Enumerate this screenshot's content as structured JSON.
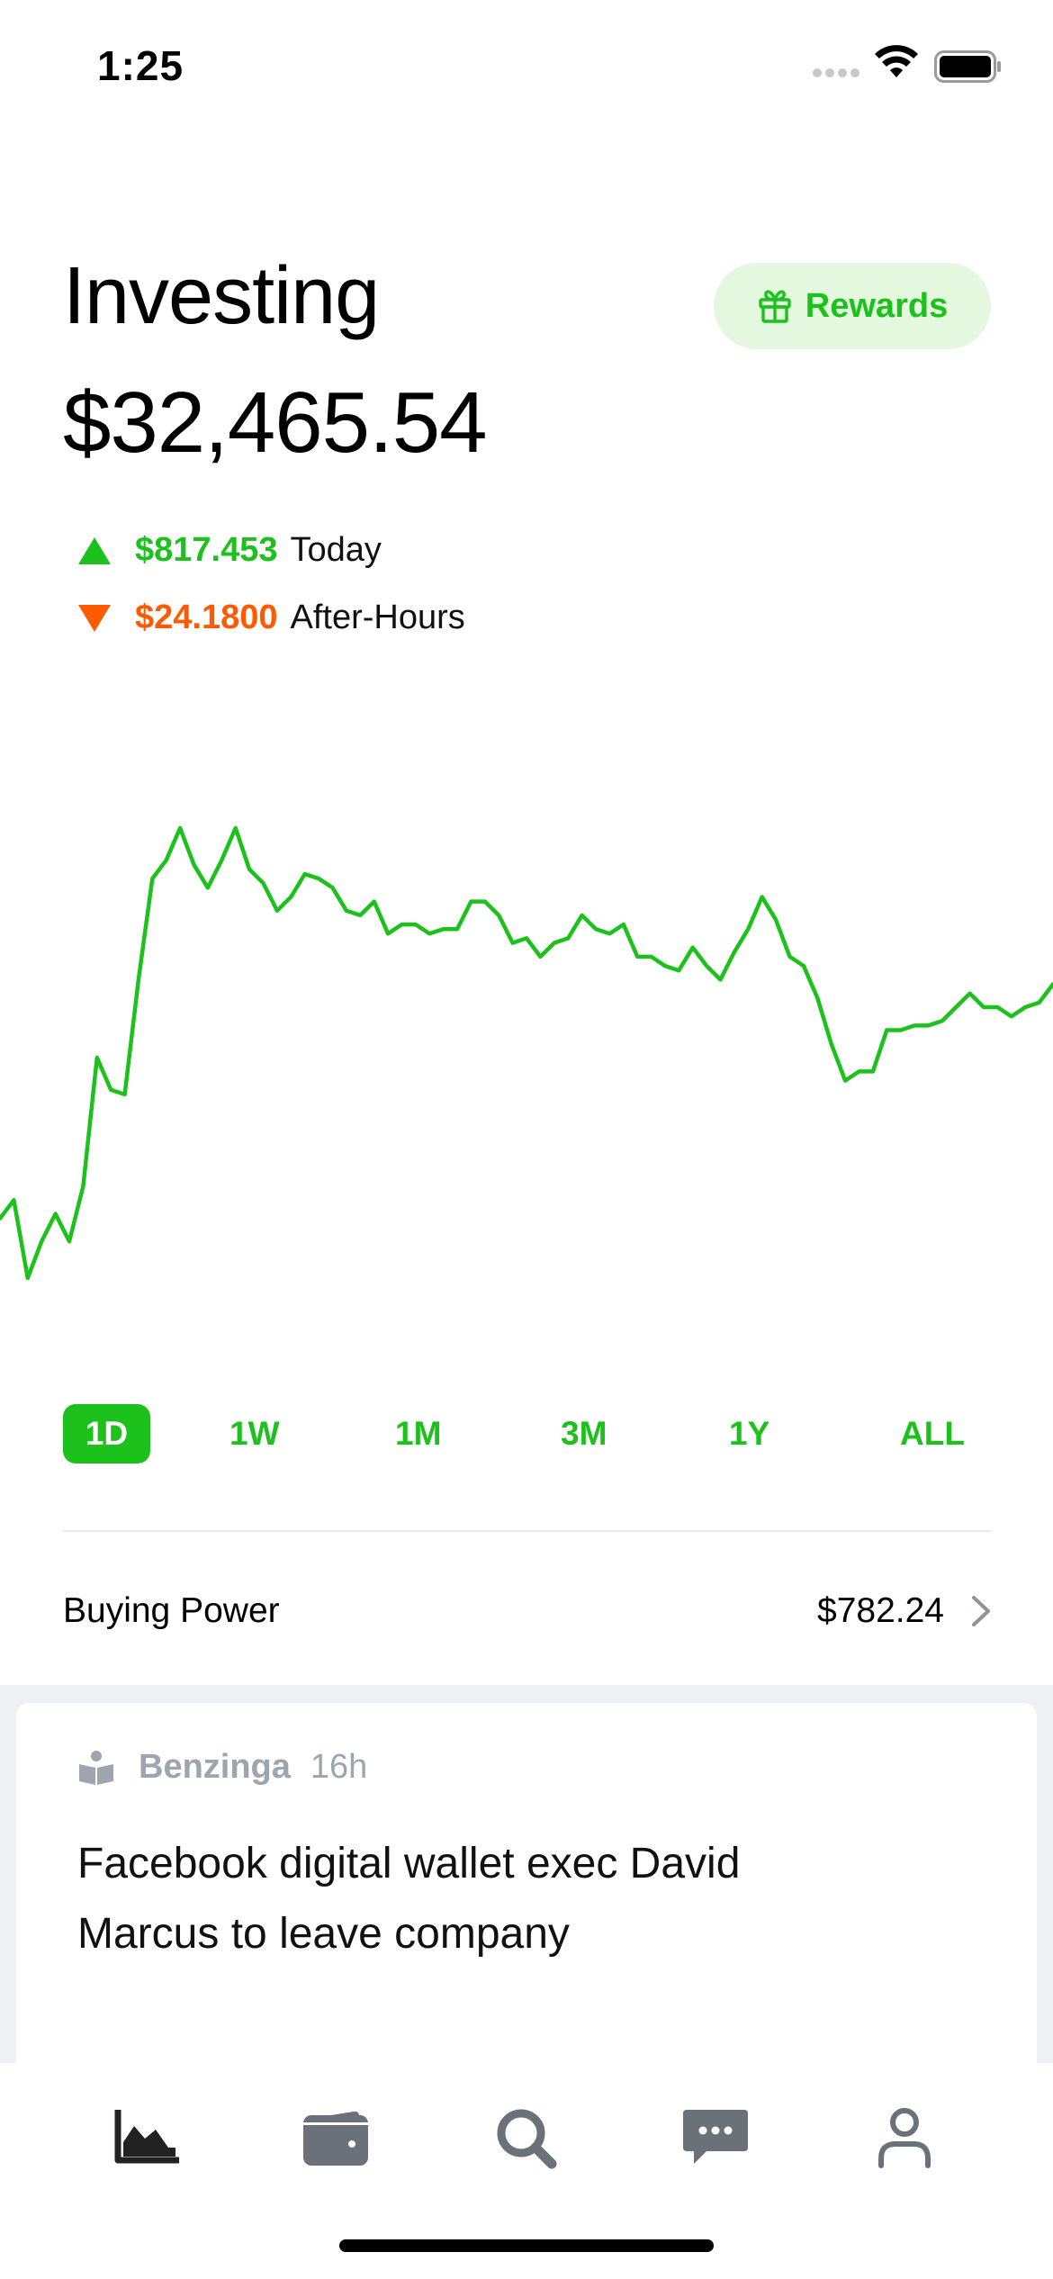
{
  "status_bar": {
    "time": "1:25",
    "icons": [
      "signal-icon",
      "wifi-icon",
      "battery-icon"
    ]
  },
  "header": {
    "title": "Investing",
    "portfolio_value": "$32,465.54",
    "rewards_label": "Rewards",
    "rewards_icon": "gift-icon"
  },
  "changes": {
    "today": {
      "value": "$817.453",
      "label": "Today",
      "direction": "up",
      "color": "#1cc11c"
    },
    "after_hours": {
      "value": "$24.1800",
      "label": "After-Hours",
      "direction": "down",
      "color": "#ff5a00"
    }
  },
  "chart_data": {
    "type": "line",
    "color": "#1cc11c",
    "grid": false,
    "axes_visible": false,
    "y": [
      -36,
      -32,
      -49,
      -41,
      -35,
      -41,
      -29,
      -1,
      -8,
      -9,
      16,
      38,
      42,
      49,
      41,
      36,
      42,
      49,
      40,
      37,
      31,
      34,
      39,
      38,
      36,
      31,
      30,
      33,
      26,
      28,
      28,
      26,
      27,
      27,
      33,
      33,
      30,
      24,
      25,
      21,
      24,
      25,
      30,
      27,
      26,
      28,
      21,
      21,
      19,
      18,
      23,
      19,
      16,
      22,
      27,
      34,
      29,
      21,
      19,
      12,
      2,
      -6,
      -4,
      -4,
      5,
      5,
      6,
      6,
      7,
      10,
      13,
      10,
      10,
      8,
      10,
      11,
      15
    ]
  },
  "ranges": {
    "active": "1D",
    "items": [
      "1D",
      "1W",
      "1M",
      "3M",
      "1Y",
      "ALL"
    ]
  },
  "buying_power": {
    "label": "Buying Power",
    "value": "$782.24"
  },
  "news": {
    "source": "Benzinga",
    "time": "16h",
    "headline": "Facebook digital wallet exec David Marcus to leave company"
  },
  "tab_bar": {
    "items": [
      {
        "name": "investing",
        "icon": "area-chart-icon",
        "active": true
      },
      {
        "name": "wallet",
        "icon": "wallet-icon",
        "active": false
      },
      {
        "name": "search",
        "icon": "search-icon",
        "active": false
      },
      {
        "name": "messages",
        "icon": "chat-bubble-icon",
        "active": false
      },
      {
        "name": "account",
        "icon": "person-icon",
        "active": false
      }
    ],
    "active_color": "#222222",
    "inactive_color": "#6b7178"
  }
}
